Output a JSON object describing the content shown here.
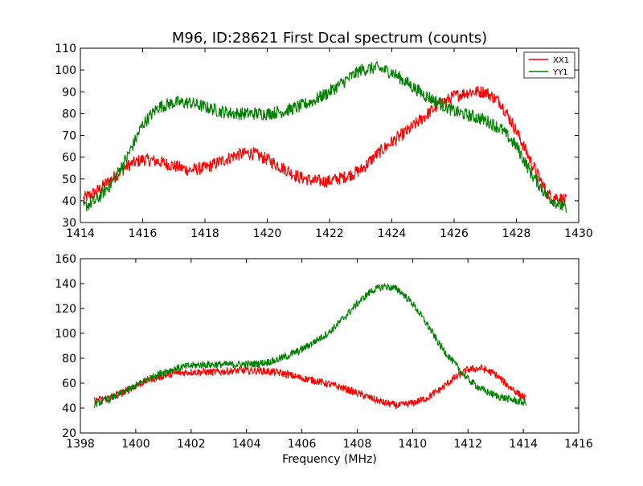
{
  "chart_data": [
    {
      "type": "line",
      "title": "M96, ID:28621 First Dcal spectrum (counts)",
      "xlabel": "",
      "ylabel": "",
      "xlim": [
        1414,
        1430
      ],
      "ylim": [
        30,
        110
      ],
      "xticks": [
        1414,
        1416,
        1418,
        1420,
        1422,
        1424,
        1426,
        1428,
        1430
      ],
      "yticks": [
        30,
        40,
        50,
        60,
        70,
        80,
        90,
        100,
        110
      ],
      "grid": false,
      "legend_position": "top-right",
      "x_range_data": [
        1414.1,
        1429.6
      ],
      "noise_amplitude": 3,
      "series": [
        {
          "name": "XX1",
          "color": "#ff0000",
          "x": [
            1414.1,
            1414.5,
            1415.0,
            1415.5,
            1416.0,
            1416.5,
            1417.0,
            1417.5,
            1418.0,
            1418.5,
            1419.0,
            1419.5,
            1420.0,
            1420.5,
            1421.0,
            1421.5,
            1422.0,
            1422.5,
            1423.0,
            1423.5,
            1424.0,
            1424.5,
            1425.0,
            1425.5,
            1426.0,
            1426.5,
            1427.0,
            1427.5,
            1428.0,
            1428.5,
            1429.0,
            1429.6
          ],
          "values": [
            41,
            44,
            50,
            56,
            59,
            58,
            56,
            54,
            55,
            58,
            61,
            62,
            59,
            55,
            51,
            49,
            49,
            51,
            54,
            61,
            67,
            72,
            78,
            84,
            88,
            90,
            90,
            85,
            72,
            57,
            43,
            40
          ]
        },
        {
          "name": "YY1",
          "color": "#008000",
          "x": [
            1414.1,
            1414.5,
            1415.0,
            1415.5,
            1416.0,
            1416.5,
            1417.0,
            1417.5,
            1418.0,
            1418.5,
            1419.0,
            1419.5,
            1420.0,
            1420.5,
            1421.0,
            1421.5,
            1422.0,
            1422.5,
            1423.0,
            1423.5,
            1424.0,
            1424.5,
            1425.0,
            1425.5,
            1426.0,
            1426.5,
            1427.0,
            1427.5,
            1428.0,
            1428.5,
            1429.0,
            1429.6
          ],
          "values": [
            37,
            40,
            48,
            60,
            75,
            83,
            85,
            85,
            83,
            81,
            80,
            80,
            80,
            81,
            83,
            86,
            90,
            95,
            100,
            101,
            99,
            94,
            89,
            85,
            81,
            79,
            77,
            73,
            65,
            52,
            42,
            36
          ]
        }
      ]
    },
    {
      "type": "line",
      "title": "",
      "xlabel": "Frequency (MHz)",
      "ylabel": "",
      "xlim": [
        1398,
        1416
      ],
      "ylim": [
        20,
        160
      ],
      "xticks": [
        1398,
        1400,
        1402,
        1404,
        1406,
        1408,
        1410,
        1412,
        1414,
        1416
      ],
      "yticks": [
        20,
        40,
        60,
        80,
        100,
        120,
        140,
        160
      ],
      "grid": false,
      "x_range_data": [
        1398.5,
        1414.1
      ],
      "noise_amplitude": 3,
      "series": [
        {
          "color": "#ff0000",
          "x": [
            1398.5,
            1399.0,
            1399.5,
            1400.0,
            1400.5,
            1401.0,
            1401.5,
            1402.0,
            1402.5,
            1403.0,
            1403.5,
            1404.0,
            1404.5,
            1405.0,
            1405.5,
            1406.0,
            1406.5,
            1407.0,
            1407.5,
            1408.0,
            1408.5,
            1409.0,
            1409.5,
            1410.0,
            1410.5,
            1411.0,
            1411.5,
            1412.0,
            1412.5,
            1413.0,
            1413.5,
            1414.1
          ],
          "values": [
            46,
            48,
            52,
            58,
            63,
            66,
            68,
            69,
            69,
            69,
            70,
            70,
            70,
            69,
            67,
            64,
            62,
            59,
            56,
            52,
            48,
            44,
            42,
            44,
            48,
            55,
            64,
            71,
            72,
            67,
            57,
            47
          ]
        },
        {
          "color": "#008000",
          "x": [
            1398.5,
            1399.0,
            1399.5,
            1400.0,
            1400.5,
            1401.0,
            1401.5,
            1402.0,
            1402.5,
            1403.0,
            1403.5,
            1404.0,
            1404.5,
            1405.0,
            1405.5,
            1406.0,
            1406.5,
            1407.0,
            1407.5,
            1408.0,
            1408.5,
            1409.0,
            1409.5,
            1410.0,
            1410.5,
            1411.0,
            1411.5,
            1412.0,
            1412.5,
            1413.0,
            1413.5,
            1414.1
          ],
          "values": [
            43,
            47,
            52,
            58,
            64,
            69,
            72,
            74,
            75,
            75,
            75,
            75,
            76,
            78,
            82,
            87,
            94,
            101,
            112,
            124,
            134,
            138,
            135,
            124,
            108,
            90,
            76,
            63,
            55,
            50,
            47,
            44
          ]
        }
      ]
    }
  ]
}
